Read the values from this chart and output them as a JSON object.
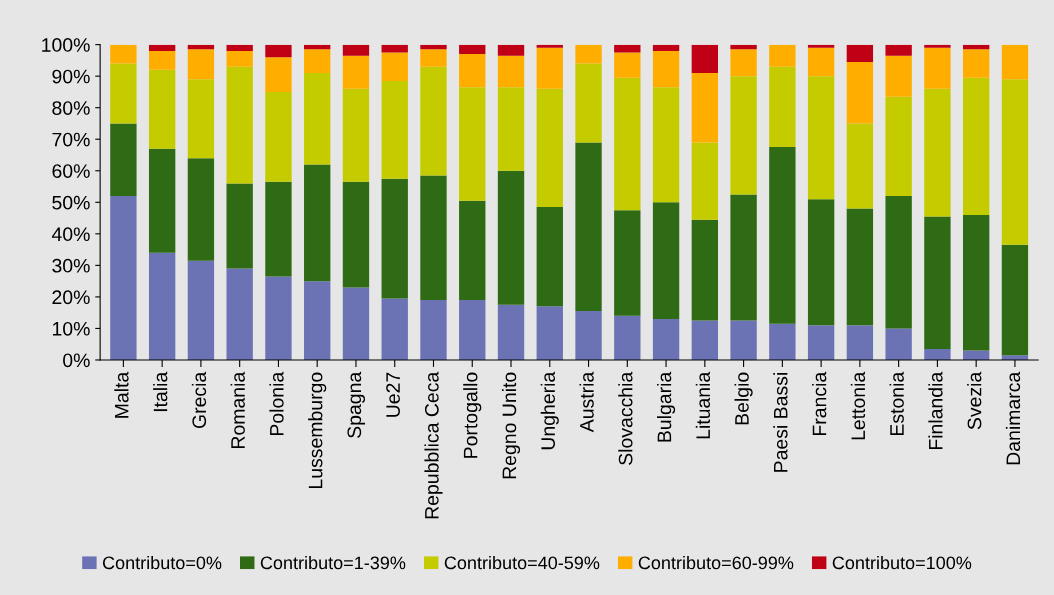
{
  "chart_data": {
    "type": "bar",
    "stacked": true,
    "categories": [
      "Malta",
      "Italia",
      "Grecia",
      "Romania",
      "Polonia",
      "Lussemburgo",
      "Spagna",
      "Ue27",
      "Repubblica Ceca",
      "Portogallo",
      "Regno Unito",
      "Ungheria",
      "Austria",
      "Slovacchia",
      "Bulgaria",
      "Lituania",
      "Belgio",
      "Paesi Bassi",
      "Francia",
      "Lettonia",
      "Estonia",
      "Finlandia",
      "Svezia",
      "Danimarca"
    ],
    "series": [
      {
        "name": "Contributo=0%",
        "color": "#6b73b5",
        "values": [
          52,
          34,
          31.5,
          29,
          26.5,
          25,
          23,
          19.5,
          19,
          19,
          17.5,
          17,
          15.5,
          14,
          13,
          12.5,
          12.5,
          11.5,
          11,
          11,
          10,
          3.5,
          3,
          1.5
        ]
      },
      {
        "name": "Contributo=1-39%",
        "color": "#2e6b14",
        "values": [
          23,
          33,
          32.5,
          27,
          30,
          37,
          33.5,
          38,
          39.5,
          31.5,
          42.5,
          31.5,
          53.5,
          33.5,
          37,
          32,
          40,
          56,
          40,
          37,
          42,
          42,
          43,
          35
        ]
      },
      {
        "name": "Contributo=40-59%",
        "color": "#c4cc00",
        "values": [
          19,
          25,
          25,
          37,
          28.5,
          29,
          29.5,
          31,
          34.5,
          36,
          26.5,
          37.5,
          25,
          42,
          36.5,
          24.5,
          37.5,
          25.5,
          39,
          27,
          31.5,
          40.5,
          43.5,
          52.5
        ]
      },
      {
        "name": "Contributo=60-99%",
        "color": "#ffae00",
        "values": [
          6,
          6,
          9.5,
          5,
          11,
          7.5,
          10.5,
          9,
          5.5,
          10.5,
          10,
          13,
          6,
          8,
          11.5,
          22,
          8.5,
          7,
          9,
          19.5,
          13,
          13,
          9,
          11
        ]
      },
      {
        "name": "Contributo=100%",
        "color": "#c00015",
        "values": [
          0,
          2,
          1.5,
          2,
          4,
          1.5,
          3.5,
          2.5,
          1.5,
          3,
          3.5,
          1,
          0,
          2.5,
          2,
          9,
          1.5,
          0,
          1,
          5.5,
          3.5,
          1,
          1.5,
          0
        ]
      }
    ],
    "ylim": [
      0,
      100
    ],
    "yticks": [
      {
        "value": 0,
        "label": "0%"
      },
      {
        "value": 10,
        "label": "10%"
      },
      {
        "value": 20,
        "label": "20%"
      },
      {
        "value": 30,
        "label": "30%"
      },
      {
        "value": 40,
        "label": "40%"
      },
      {
        "value": 50,
        "label": "50%"
      },
      {
        "value": 60,
        "label": "60%"
      },
      {
        "value": 70,
        "label": "70%"
      },
      {
        "value": 80,
        "label": "80%"
      },
      {
        "value": 90,
        "label": "90%"
      },
      {
        "value": 100,
        "label": "100%"
      }
    ],
    "grid": false,
    "legend": "bottom"
  }
}
